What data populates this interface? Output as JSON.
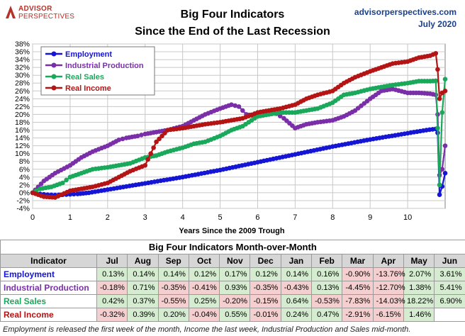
{
  "header": {
    "logo_line1": "ADVISOR",
    "logo_line2": "PERSPECTIVES",
    "title_line1": "Big Four Indicators",
    "title_line2": "Since the End of the Last Recession",
    "site": "advisorperspectives.com",
    "date": "July 2020"
  },
  "chart_data": {
    "type": "line",
    "xlabel": "Years Since the 2009 Trough",
    "ylabel": "",
    "xlim": [
      0,
      11
    ],
    "ylim": [
      -4,
      38
    ],
    "x_ticks": [
      0,
      1,
      2,
      3,
      4,
      5,
      6,
      7,
      8,
      9,
      10
    ],
    "y_ticks": [
      "-4%",
      "-2%",
      "0%",
      "2%",
      "4%",
      "6%",
      "8%",
      "10%",
      "12%",
      "14%",
      "16%",
      "18%",
      "20%",
      "22%",
      "24%",
      "26%",
      "28%",
      "30%",
      "32%",
      "34%",
      "36%",
      "38%"
    ],
    "y_tick_values": [
      -4,
      -2,
      0,
      2,
      4,
      6,
      8,
      10,
      12,
      14,
      16,
      18,
      20,
      22,
      24,
      26,
      28,
      30,
      32,
      34,
      36,
      38
    ],
    "grid": true,
    "legend_position": "top-left",
    "series": [
      {
        "name": "Employment",
        "color": "#1515d6",
        "points": [
          [
            0,
            0
          ],
          [
            0.2,
            -0.3
          ],
          [
            0.4,
            -0.5
          ],
          [
            0.6,
            -0.6
          ],
          [
            0.8,
            -0.5
          ],
          [
            1,
            -0.4
          ],
          [
            1.2,
            -0.3
          ],
          [
            1.5,
            0
          ],
          [
            2,
            0.8
          ],
          [
            2.5,
            1.6
          ],
          [
            3,
            2.4
          ],
          [
            3.5,
            3.2
          ],
          [
            4,
            4
          ],
          [
            4.5,
            4.9
          ],
          [
            5,
            5.8
          ],
          [
            5.5,
            6.8
          ],
          [
            6,
            7.8
          ],
          [
            6.5,
            8.8
          ],
          [
            7,
            9.8
          ],
          [
            7.5,
            10.8
          ],
          [
            8,
            11.8
          ],
          [
            8.5,
            12.7
          ],
          [
            9,
            13.6
          ],
          [
            9.5,
            14.4
          ],
          [
            10,
            15.2
          ],
          [
            10.5,
            16
          ],
          [
            10.75,
            16.3
          ],
          [
            10.8,
            15.3
          ],
          [
            10.85,
            -0.5
          ],
          [
            10.92,
            1.6
          ],
          [
            11,
            5
          ]
        ]
      },
      {
        "name": "Industrial Production",
        "color": "#7a2fa8",
        "points": [
          [
            0,
            0
          ],
          [
            0.3,
            3
          ],
          [
            0.6,
            5
          ],
          [
            1,
            7
          ],
          [
            1.3,
            9
          ],
          [
            1.6,
            10.5
          ],
          [
            2,
            12
          ],
          [
            2.3,
            13.5
          ],
          [
            2.5,
            14
          ],
          [
            2.8,
            14.5
          ],
          [
            3,
            15
          ],
          [
            3.3,
            15.5
          ],
          [
            3.6,
            16
          ],
          [
            4,
            17
          ],
          [
            4.3,
            18.5
          ],
          [
            4.6,
            20
          ],
          [
            5,
            21.5
          ],
          [
            5.3,
            22.5
          ],
          [
            5.5,
            22
          ],
          [
            5.7,
            20
          ],
          [
            6,
            19.5
          ],
          [
            6.3,
            20.5
          ],
          [
            6.5,
            20.2
          ],
          [
            6.7,
            19
          ],
          [
            7,
            16.5
          ],
          [
            7.3,
            17.5
          ],
          [
            7.6,
            18
          ],
          [
            8,
            18.5
          ],
          [
            8.3,
            19.5
          ],
          [
            8.6,
            21
          ],
          [
            9,
            24
          ],
          [
            9.3,
            26
          ],
          [
            9.6,
            26.5
          ],
          [
            10,
            25.5
          ],
          [
            10.3,
            25.5
          ],
          [
            10.6,
            25.3
          ],
          [
            10.75,
            25
          ],
          [
            10.8,
            20
          ],
          [
            10.85,
            4.5
          ],
          [
            10.92,
            6
          ],
          [
            11,
            12
          ]
        ]
      },
      {
        "name": "Real Sales",
        "color": "#1aa85a",
        "points": [
          [
            0,
            0
          ],
          [
            0.2,
            1
          ],
          [
            0.5,
            1.5
          ],
          [
            0.8,
            2.5
          ],
          [
            1,
            4
          ],
          [
            1.3,
            5
          ],
          [
            1.6,
            6
          ],
          [
            2,
            6.5
          ],
          [
            2.3,
            7
          ],
          [
            2.6,
            7.5
          ],
          [
            3,
            9
          ],
          [
            3.3,
            9.5
          ],
          [
            3.6,
            10.5
          ],
          [
            4,
            11.5
          ],
          [
            4.3,
            12.5
          ],
          [
            4.6,
            13
          ],
          [
            5,
            14.5
          ],
          [
            5.3,
            16
          ],
          [
            5.6,
            17
          ],
          [
            6,
            19.5
          ],
          [
            6.3,
            20
          ],
          [
            6.6,
            20.5
          ],
          [
            7,
            20.5
          ],
          [
            7.3,
            21
          ],
          [
            7.6,
            21.5
          ],
          [
            8,
            23
          ],
          [
            8.3,
            25
          ],
          [
            8.6,
            25.5
          ],
          [
            9,
            26.5
          ],
          [
            9.3,
            27
          ],
          [
            9.6,
            27.5
          ],
          [
            10,
            28
          ],
          [
            10.3,
            28.5
          ],
          [
            10.6,
            28.5
          ],
          [
            10.75,
            28.6
          ],
          [
            10.8,
            16.5
          ],
          [
            10.85,
            2
          ],
          [
            10.92,
            20.5
          ],
          [
            11,
            29
          ]
        ]
      },
      {
        "name": "Real Income",
        "color": "#b41414",
        "points": [
          [
            0,
            0
          ],
          [
            0.3,
            -1
          ],
          [
            0.6,
            -1.2
          ],
          [
            1,
            0.5
          ],
          [
            1.3,
            1
          ],
          [
            1.6,
            1.5
          ],
          [
            2,
            2.5
          ],
          [
            2.3,
            4
          ],
          [
            2.6,
            5.5
          ],
          [
            3,
            7
          ],
          [
            3.3,
            13
          ],
          [
            3.6,
            16
          ],
          [
            4,
            16.5
          ],
          [
            4.3,
            17
          ],
          [
            4.6,
            17.5
          ],
          [
            5,
            18
          ],
          [
            5.3,
            18.5
          ],
          [
            5.6,
            19
          ],
          [
            6,
            20.5
          ],
          [
            6.3,
            21
          ],
          [
            6.6,
            21.5
          ],
          [
            7,
            22.5
          ],
          [
            7.3,
            24
          ],
          [
            7.6,
            25
          ],
          [
            8,
            26
          ],
          [
            8.3,
            28
          ],
          [
            8.6,
            29.5
          ],
          [
            9,
            31
          ],
          [
            9.3,
            32
          ],
          [
            9.6,
            33
          ],
          [
            10,
            33.5
          ],
          [
            10.3,
            34.5
          ],
          [
            10.6,
            35
          ],
          [
            10.75,
            35.6
          ],
          [
            10.8,
            31.5
          ],
          [
            10.85,
            24
          ],
          [
            10.92,
            25.5
          ],
          [
            11,
            26
          ]
        ]
      }
    ]
  },
  "table": {
    "title": "Big Four Indicators Month-over-Month",
    "header_indicator": "Indicator",
    "months": [
      "Jul",
      "Aug",
      "Sep",
      "Oct",
      "Nov",
      "Dec",
      "Jan",
      "Feb",
      "Mar",
      "Apr",
      "May",
      "Jun"
    ],
    "rows": [
      {
        "name": "Employment",
        "color": "#1515d6",
        "values": [
          "0.13%",
          "0.14%",
          "0.14%",
          "0.12%",
          "0.17%",
          "0.12%",
          "0.14%",
          "0.16%",
          "-0.90%",
          "-13.76%",
          "2.07%",
          "3.61%"
        ]
      },
      {
        "name": "Industrial Production",
        "color": "#7a2fa8",
        "values": [
          "-0.18%",
          "0.71%",
          "-0.35%",
          "-0.41%",
          "0.93%",
          "-0.35%",
          "-0.43%",
          "0.13%",
          "-4.45%",
          "-12.70%",
          "1.38%",
          "5.41%"
        ]
      },
      {
        "name": "Real Sales",
        "color": "#1aa85a",
        "values": [
          "0.42%",
          "0.37%",
          "-0.55%",
          "0.25%",
          "-0.20%",
          "-0.15%",
          "0.64%",
          "-0.53%",
          "-7.83%",
          "-14.03%",
          "18.22%",
          "6.90%"
        ]
      },
      {
        "name": "Real Income",
        "color": "#b41414",
        "values": [
          "-0.32%",
          "0.39%",
          "0.20%",
          "-0.04%",
          "0.55%",
          "-0.01%",
          "0.24%",
          "0.47%",
          "-2.91%",
          "-6.15%",
          "1.46%",
          ""
        ]
      }
    ]
  },
  "footnote": "Employment is released the first week of the month, Income the last week, Industrial Production and Sales mid-month."
}
